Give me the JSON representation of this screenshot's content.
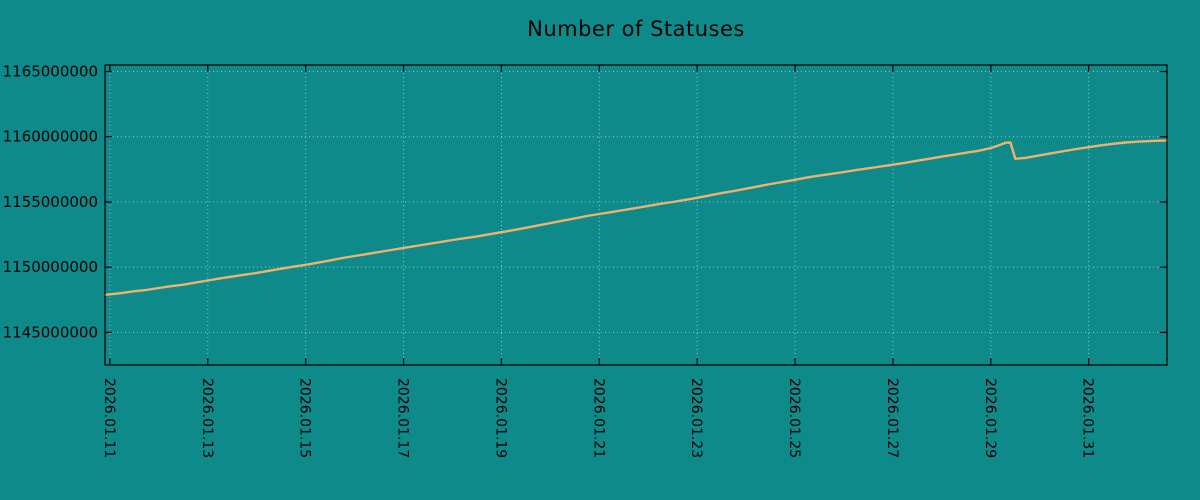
{
  "chart_data": {
    "type": "line",
    "title": "Number of Statuses",
    "background": "#0f8a8b",
    "plot_border_color": "#000000",
    "text_color": "#000000",
    "grid": {
      "show": true,
      "color": "#d9ecec",
      "opacity": 0.65,
      "dash": "1 3"
    },
    "x_axis": {
      "range_days": [
        10.9,
        32.6
      ],
      "ticks": [
        {
          "pos": 11,
          "label": "2026.01.11"
        },
        {
          "pos": 13,
          "label": "2026.01.13"
        },
        {
          "pos": 15,
          "label": "2026.01.15"
        },
        {
          "pos": 17,
          "label": "2026.01.17"
        },
        {
          "pos": 19,
          "label": "2026.01.19"
        },
        {
          "pos": 21,
          "label": "2026.01.21"
        },
        {
          "pos": 23,
          "label": "2026.01.23"
        },
        {
          "pos": 25,
          "label": "2026.01.25"
        },
        {
          "pos": 27,
          "label": "2026.01.27"
        },
        {
          "pos": 29,
          "label": "2026.01.29"
        },
        {
          "pos": 31,
          "label": "2026.01.31"
        }
      ]
    },
    "y_axis": {
      "range": [
        1142500000,
        1165500000
      ],
      "ticks": [
        {
          "value": 1145000000,
          "label": "1145000000"
        },
        {
          "value": 1150000000,
          "label": "1150000000"
        },
        {
          "value": 1155000000,
          "label": "1155000000"
        },
        {
          "value": 1160000000,
          "label": "1160000000"
        },
        {
          "value": 1165000000,
          "label": "1165000000"
        }
      ]
    },
    "series": [
      {
        "name": "statuses",
        "color": "#efb26e",
        "width": 2.4,
        "points": [
          [
            10.9,
            1147880000
          ],
          [
            11.0,
            1147920000
          ],
          [
            11.25,
            1148020000
          ],
          [
            11.5,
            1148160000
          ],
          [
            11.75,
            1148260000
          ],
          [
            12.0,
            1148400000
          ],
          [
            12.25,
            1148540000
          ],
          [
            12.5,
            1148660000
          ],
          [
            12.75,
            1148820000
          ],
          [
            13.0,
            1148980000
          ],
          [
            13.25,
            1149140000
          ],
          [
            13.5,
            1149280000
          ],
          [
            13.75,
            1149420000
          ],
          [
            14.0,
            1149560000
          ],
          [
            14.25,
            1149720000
          ],
          [
            14.5,
            1149880000
          ],
          [
            14.75,
            1150040000
          ],
          [
            15.0,
            1150180000
          ],
          [
            15.25,
            1150340000
          ],
          [
            15.5,
            1150520000
          ],
          [
            15.75,
            1150700000
          ],
          [
            16.0,
            1150860000
          ],
          [
            16.25,
            1151000000
          ],
          [
            16.5,
            1151160000
          ],
          [
            16.75,
            1151320000
          ],
          [
            17.0,
            1151480000
          ],
          [
            17.25,
            1151620000
          ],
          [
            17.5,
            1151780000
          ],
          [
            17.75,
            1151920000
          ],
          [
            18.0,
            1152080000
          ],
          [
            18.25,
            1152220000
          ],
          [
            18.5,
            1152360000
          ],
          [
            18.75,
            1152520000
          ],
          [
            19.0,
            1152680000
          ],
          [
            19.25,
            1152840000
          ],
          [
            19.5,
            1153020000
          ],
          [
            19.75,
            1153200000
          ],
          [
            20.0,
            1153380000
          ],
          [
            20.25,
            1153560000
          ],
          [
            20.5,
            1153740000
          ],
          [
            20.75,
            1153920000
          ],
          [
            21.0,
            1154080000
          ],
          [
            21.25,
            1154220000
          ],
          [
            21.5,
            1154380000
          ],
          [
            21.75,
            1154540000
          ],
          [
            22.0,
            1154700000
          ],
          [
            22.25,
            1154860000
          ],
          [
            22.5,
            1155000000
          ],
          [
            22.75,
            1155160000
          ],
          [
            23.0,
            1155320000
          ],
          [
            23.25,
            1155500000
          ],
          [
            23.5,
            1155680000
          ],
          [
            23.75,
            1155840000
          ],
          [
            24.0,
            1156020000
          ],
          [
            24.25,
            1156200000
          ],
          [
            24.5,
            1156380000
          ],
          [
            24.75,
            1156540000
          ],
          [
            25.0,
            1156700000
          ],
          [
            25.25,
            1156880000
          ],
          [
            25.5,
            1157020000
          ],
          [
            25.75,
            1157160000
          ],
          [
            26.0,
            1157300000
          ],
          [
            26.25,
            1157440000
          ],
          [
            26.5,
            1157580000
          ],
          [
            26.75,
            1157720000
          ],
          [
            27.0,
            1157860000
          ],
          [
            27.25,
            1158000000
          ],
          [
            27.5,
            1158160000
          ],
          [
            27.75,
            1158320000
          ],
          [
            28.0,
            1158480000
          ],
          [
            28.25,
            1158620000
          ],
          [
            28.5,
            1158780000
          ],
          [
            28.75,
            1158920000
          ],
          [
            29.0,
            1159140000
          ],
          [
            29.15,
            1159320000
          ],
          [
            29.3,
            1159540000
          ],
          [
            29.4,
            1159560000
          ],
          [
            29.5,
            1158320000
          ],
          [
            29.7,
            1158380000
          ],
          [
            30.0,
            1158580000
          ],
          [
            30.25,
            1158740000
          ],
          [
            30.5,
            1158900000
          ],
          [
            30.75,
            1159060000
          ],
          [
            31.0,
            1159200000
          ],
          [
            31.25,
            1159340000
          ],
          [
            31.5,
            1159460000
          ],
          [
            31.75,
            1159560000
          ],
          [
            32.0,
            1159620000
          ],
          [
            32.3,
            1159680000
          ],
          [
            32.6,
            1159720000
          ]
        ]
      }
    ]
  }
}
